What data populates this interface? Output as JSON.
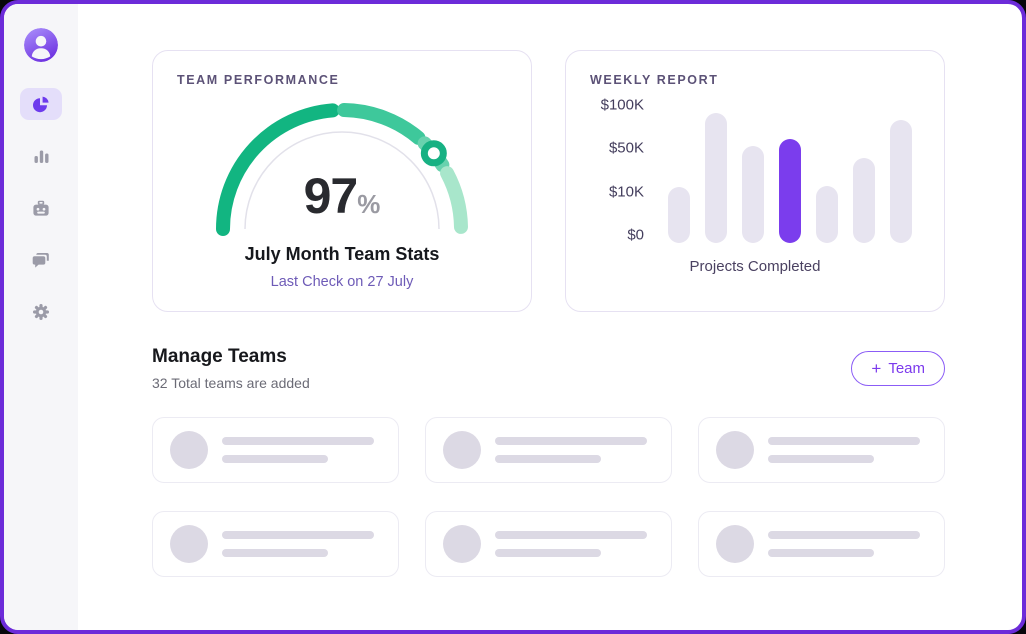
{
  "app": {
    "frame_border_color": "#6c2bd9",
    "sidebar_bg": "#f6f6f9",
    "accent": "#7c3aed"
  },
  "sidebar": {
    "items": [
      {
        "id": "dashboard",
        "icon": "pie-chart-icon",
        "active": true
      },
      {
        "id": "analytics",
        "icon": "bar-chart-icon",
        "active": false
      },
      {
        "id": "bots",
        "icon": "robot-icon",
        "active": false
      },
      {
        "id": "messages",
        "icon": "chat-icon",
        "active": false
      },
      {
        "id": "settings",
        "icon": "gear-icon",
        "active": false
      }
    ]
  },
  "performance_card": {
    "title": "TEAM PERFORMANCE",
    "value": "97",
    "unit": "%",
    "subtitle": "July Month Team Stats",
    "caption": "Last Check on 27 July",
    "gauge": {
      "track_color": "#e2e1ea",
      "track_radius": 97,
      "radius": 119,
      "stroke_width": 14,
      "segments": [
        {
          "start": 180,
          "end": 94.5,
          "color": "#12b581"
        },
        {
          "start": 89,
          "end": 50,
          "color": "#3ec89b"
        },
        {
          "start": 46,
          "end": 32.5,
          "color": "#68d2ae"
        },
        {
          "start": 28,
          "end": 1,
          "color": "#a8e6cb"
        }
      ],
      "marker": {
        "angle": 39.5,
        "color": "#17b183"
      }
    }
  },
  "report_card": {
    "title": "WEEKLY REPORT",
    "xlabel": "Projects Completed",
    "bar_color": "#e7e4f0",
    "highlight_color": "#7b3ded",
    "ticks": [
      {
        "label": "$0",
        "pos": 0.057
      },
      {
        "label": "$10K",
        "pos": 0.364
      },
      {
        "label": "$50K",
        "pos": 0.68
      },
      {
        "label": "$100K",
        "pos": 0.985
      }
    ],
    "bars": [
      {
        "value_k": 12,
        "height_pct": 40,
        "highlighted": false
      },
      {
        "value_k": 90,
        "height_pct": 93,
        "highlighted": false
      },
      {
        "value_k": 51,
        "height_pct": 69,
        "highlighted": false
      },
      {
        "value_k": 60,
        "height_pct": 74,
        "highlighted": true
      },
      {
        "value_k": 12,
        "height_pct": 41,
        "highlighted": false
      },
      {
        "value_k": 42,
        "height_pct": 61,
        "highlighted": false
      },
      {
        "value_k": 82,
        "height_pct": 88,
        "highlighted": false
      }
    ]
  },
  "manage_teams": {
    "title": "Manage Teams",
    "subtitle": "32 Total teams are added",
    "add_button_icon": "+",
    "add_button_label": "Team",
    "placeholder_count": 6
  },
  "chart_data": [
    {
      "type": "gauge",
      "title": "TEAM PERFORMANCE",
      "value": 97,
      "unit": "%",
      "range": [
        0,
        100
      ],
      "label": "July Month Team Stats",
      "annotation": "Last Check on 27 July"
    },
    {
      "type": "bar",
      "title": "WEEKLY REPORT",
      "xlabel": "Projects Completed",
      "ylabel": "",
      "y_tick_labels": [
        "$0",
        "$10K",
        "$50K",
        "$100K"
      ],
      "categories": [
        "1",
        "2",
        "3",
        "4",
        "5",
        "6",
        "7"
      ],
      "values": [
        12000,
        90000,
        51000,
        60000,
        12000,
        42000,
        82000
      ],
      "highlighted_index": 3,
      "legend": "none",
      "grid": "off"
    }
  ]
}
